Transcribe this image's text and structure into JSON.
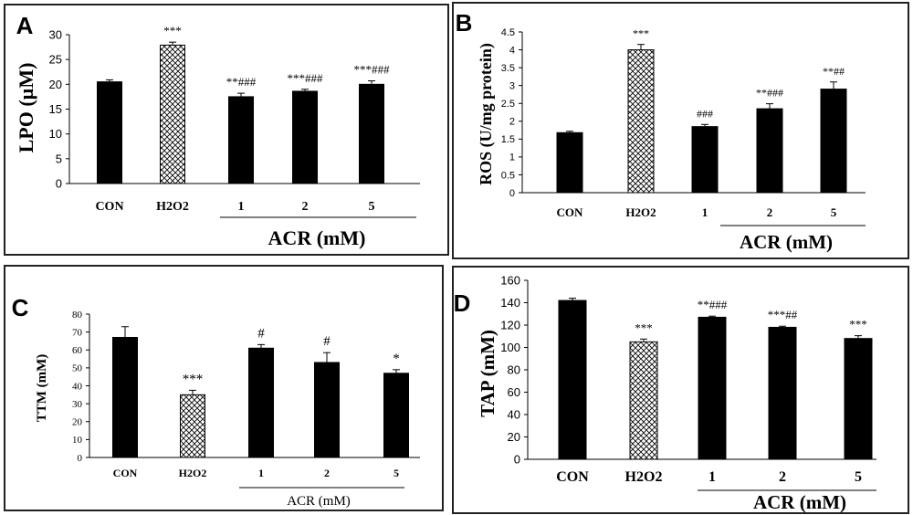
{
  "chart_data": [
    {
      "type": "bar",
      "panel_label": "A",
      "ylabel": "LPO (µM)",
      "group_label": "ACR (mM)",
      "ylim": [
        0,
        30
      ],
      "yticks": [
        0,
        5,
        10,
        15,
        20,
        25,
        30
      ],
      "categories": [
        "CON",
        "H2O2",
        "1",
        "2",
        "5"
      ],
      "values": [
        20.5,
        27.9,
        17.5,
        18.6,
        20.0
      ],
      "errors": [
        0.4,
        0.6,
        0.7,
        0.4,
        0.7
      ],
      "significance": [
        "",
        "***",
        "**###",
        "***###",
        "***###"
      ],
      "grouped_categories": [
        "1",
        "2",
        "5"
      ]
    },
    {
      "type": "bar",
      "panel_label": "B",
      "ylabel": "ROS (U/mg protein)",
      "group_label": "ACR (mM)",
      "ylim": [
        0,
        4.5
      ],
      "yticks": [
        0,
        0.5,
        1,
        1.5,
        2,
        2.5,
        3,
        3.5,
        4,
        4.5
      ],
      "categories": [
        "CON",
        "H2O2",
        "1",
        "2",
        "5"
      ],
      "values": [
        1.68,
        4.0,
        1.85,
        2.35,
        2.9
      ],
      "errors": [
        0.04,
        0.15,
        0.06,
        0.14,
        0.2
      ],
      "significance": [
        "",
        "***",
        "###",
        "**###",
        "**##"
      ],
      "grouped_categories": [
        "1",
        "2",
        "5"
      ]
    },
    {
      "type": "bar",
      "panel_label": "C",
      "ylabel": "TTM (mM)",
      "group_label": "ACR (mM)",
      "ylim": [
        0,
        80
      ],
      "yticks": [
        0,
        10,
        20,
        30,
        40,
        50,
        60,
        70,
        80
      ],
      "categories": [
        "CON",
        "H2O2",
        "1",
        "2",
        "5"
      ],
      "values": [
        67,
        35,
        61,
        53,
        47
      ],
      "errors": [
        6,
        2.5,
        2,
        5.5,
        2
      ],
      "significance": [
        "",
        "***",
        "#",
        "#",
        "*"
      ],
      "grouped_categories": [
        "1",
        "2",
        "5"
      ]
    },
    {
      "type": "bar",
      "panel_label": "D",
      "ylabel": "TAP (mM)",
      "group_label": "ACR (mM)",
      "ylim": [
        0,
        160
      ],
      "yticks": [
        0,
        20,
        40,
        60,
        80,
        100,
        120,
        140,
        160
      ],
      "categories": [
        "CON",
        "H2O2",
        "1",
        "2",
        "5"
      ],
      "values": [
        142,
        105,
        127,
        118,
        108
      ],
      "errors": [
        2,
        2.5,
        1,
        1,
        2.5
      ],
      "significance": [
        "",
        "***",
        "**###",
        "***##",
        "***"
      ],
      "grouped_categories": [
        "1",
        "2",
        "5"
      ]
    }
  ],
  "colors": {
    "bar": "#000000",
    "treated_bar_pattern": "#000000",
    "background": "#ffffff",
    "frame": "#222222"
  }
}
